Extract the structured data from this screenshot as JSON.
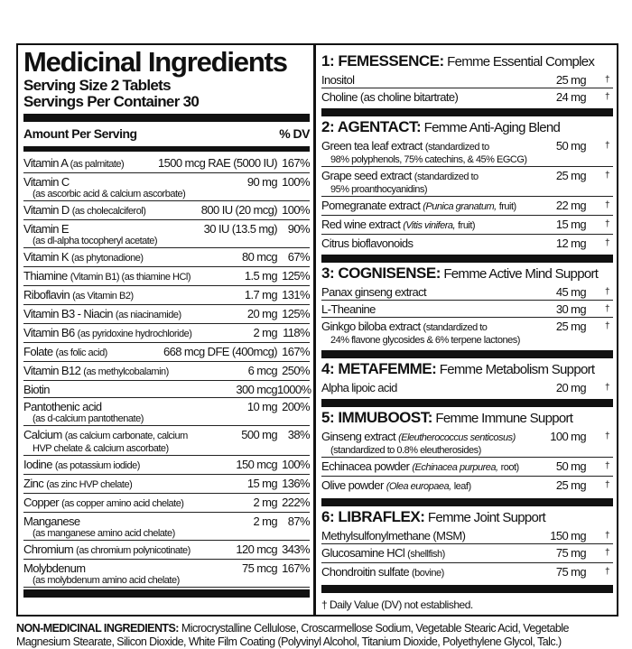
{
  "title": "Medicinal Ingredients",
  "serving_size": "Serving Size 2 Tablets",
  "servings_per_container": "Servings Per Container 30",
  "amount_per_serving": "Amount Per Serving",
  "dv_header": "% DV",
  "vitamins": [
    {
      "name": "Vitamin A",
      "sub": "(as palmitate)",
      "amount": "1500 mcg RAE (5000 IU)",
      "dv": "167%",
      "lines": 1
    },
    {
      "name": "Vitamin C",
      "sub2": "(as ascorbic acid & calcium ascorbate)",
      "amount": "90 mg",
      "dv": "100%",
      "lines": 2
    },
    {
      "name": "Vitamin D",
      "sub": "(as cholecalciferol)",
      "amount": "800 IU (20 mcg)",
      "dv": "100%",
      "lines": 1
    },
    {
      "name": "Vitamin E",
      "sub2": "(as dl-alpha tocopheryl acetate)",
      "amount": "30 IU (13.5 mg)",
      "dv": "90%",
      "lines": 2
    },
    {
      "name": "Vitamin K",
      "sub": "(as phytonadione)",
      "amount": "80 mcg",
      "dv": "67%",
      "lines": 1
    },
    {
      "name": "Thiamine",
      "sub": "(Vitamin B1)  (as thiamine HCl)",
      "amount": "1.5 mg",
      "dv": "125%",
      "lines": 1
    },
    {
      "name": "Riboflavin",
      "sub": "(as Vitamin B2)",
      "amount": "1.7 mg",
      "dv": "131%",
      "lines": 1
    },
    {
      "name": "Vitamin B3 - Niacin",
      "sub": "(as niacinamide)",
      "amount": "20 mg",
      "dv": "125%",
      "lines": 1
    },
    {
      "name": "Vitamin B6",
      "sub": "(as pyridoxine hydrochloride)",
      "amount": "2 mg",
      "dv": "118%",
      "lines": 1
    },
    {
      "name": "Folate",
      "sub": "(as folic acid)",
      "amount": "668 mcg DFE (400mcg)",
      "dv": "167%",
      "lines": 1
    },
    {
      "name": "Vitamin B12",
      "sub": "(as methylcobalamin)",
      "amount": "6 mcg",
      "dv": "250%",
      "lines": 1
    },
    {
      "name": "Biotin",
      "amount": "300 mcg",
      "dv": "1000%",
      "lines": 1
    },
    {
      "name": "Pantothenic acid",
      "sub2": "(as d-calcium pantothenate)",
      "amount": "10 mg",
      "dv": "200%",
      "lines": 2
    },
    {
      "name": "Calcium",
      "sub": "(as calcium carbonate, calcium",
      "sub2": "HVP chelate & calcium ascorbate)",
      "amount": "500 mg",
      "dv": "38%",
      "lines": 2
    },
    {
      "name": "Iodine",
      "sub": "(as potassium iodide)",
      "amount": "150 mcg",
      "dv": "100%",
      "lines": 1
    },
    {
      "name": "Zinc",
      "sub": "(as zinc HVP chelate)",
      "amount": "15 mg",
      "dv": "136%",
      "lines": 1
    },
    {
      "name": "Copper",
      "sub": "(as copper amino acid chelate)",
      "amount": "2 mg",
      "dv": "222%",
      "lines": 1
    },
    {
      "name": "Manganese",
      "sub2": "(as manganese amino acid chelate)",
      "amount": "2 mg",
      "dv": "87%",
      "lines": 2
    },
    {
      "name": "Chromium",
      "sub": "(as chromium polynicotinate)",
      "amount": "120 mcg",
      "dv": "343%",
      "lines": 1
    },
    {
      "name": "Molybdenum",
      "sub2": "(as molybdenum amino acid chelate)",
      "amount": "75 mcg",
      "dv": "167%",
      "lines": 2
    }
  ],
  "blends": [
    {
      "code": "1: FEMESSENCE:",
      "name": "Femme Essential Complex",
      "items": [
        {
          "name": "Inositol",
          "amount": "25 mg",
          "dv": "†",
          "lines": 1
        },
        {
          "name": "Choline (as choline bitartrate)",
          "amount": "24 mg",
          "dv": "†",
          "lines": 1
        }
      ]
    },
    {
      "code": "2: AGENTACT:",
      "name": "Femme Anti-Aging Blend",
      "items": [
        {
          "name": "Green tea leaf extract",
          "sub": "(standardized to",
          "sub2": "98% polyphenols, 75% catechins, & 45% EGCG)",
          "amount": "50 mg",
          "dv": "†",
          "lines": 2
        },
        {
          "name": "Grape seed extract",
          "sub": "(standardized to",
          "sub2": "95% proanthocyanidins)",
          "amount": "25 mg",
          "dv": "†",
          "lines": 2
        },
        {
          "name": "Pomegranate extract",
          "ital": "(Punica granatum,",
          "sub": "fruit)",
          "amount": "22 mg",
          "dv": "†",
          "lines": 1
        },
        {
          "name": "Red wine extract",
          "ital": "(Vitis vinifera,",
          "sub": "fruit)",
          "amount": "15 mg",
          "dv": "†",
          "lines": 1
        },
        {
          "name": "Citrus bioflavonoids",
          "amount": "12 mg",
          "dv": "†",
          "lines": 1
        }
      ]
    },
    {
      "code": "3: COGNISENSE:",
      "name": "Femme Active Mind Support",
      "items": [
        {
          "name": "Panax ginseng extract",
          "amount": "45 mg",
          "dv": "†",
          "lines": 1
        },
        {
          "name": "L-Theanine",
          "amount": "30 mg",
          "dv": "†",
          "lines": 1
        },
        {
          "name": "Ginkgo biloba extract",
          "sub": "(standardized to",
          "sub2": "24% flavone glycosides & 6% terpene lactones)",
          "amount": "25 mg",
          "dv": "†",
          "lines": 2
        }
      ]
    },
    {
      "code": "4: METAFEMME:",
      "name": "Femme Metabolism Support",
      "items": [
        {
          "name": "Alpha lipoic acid",
          "amount": "20 mg",
          "dv": "†",
          "lines": 1
        }
      ]
    },
    {
      "code": "5: IMMUBOOST:",
      "name": "Femme Immune Support",
      "items": [
        {
          "name": "Ginseng extract",
          "ital": "(Eleutherococcus senticosus)",
          "sub2": "(standardized to 0.8% eleutherosides)",
          "amount": "100 mg",
          "dv": "†",
          "lines": 2
        },
        {
          "name": "Echinacea powder",
          "ital": "(Echinacea purpurea,",
          "sub": "root)",
          "amount": "50 mg",
          "dv": "†",
          "lines": 1
        },
        {
          "name": "Olive powder",
          "ital": "(Olea europaea,",
          "sub": "leaf)",
          "amount": "25 mg",
          "dv": "†",
          "lines": 1
        }
      ]
    },
    {
      "code": "6: LIBRAFLEX:",
      "name": "Femme Joint Support",
      "items": [
        {
          "name": "Methylsulfonylmethane (MSM)",
          "amount": "150 mg",
          "dv": "†",
          "lines": 1
        },
        {
          "name": "Glucosamine HCl",
          "sub": "(shellfish)",
          "amount": "75 mg",
          "dv": "†",
          "lines": 1
        },
        {
          "name": "Chondroitin sulfate",
          "sub": "(bovine)",
          "amount": "75 mg",
          "dv": "†",
          "lines": 1
        }
      ]
    }
  ],
  "footnote": "† Daily Value (DV) not established.",
  "non_medicinal": {
    "label": "NON-MEDICINAL INGREDIENTS:",
    "text": "Microcrystalline Cellulose, Croscarmellose Sodium, Vegetable Stearic Acid, Vegetable Magnesium Stearate, Silicon Dioxide, White Film Coating (Polyvinyl Alcohol, Titanium Dioxide, Polyethylene Glycol, Talc.)"
  }
}
